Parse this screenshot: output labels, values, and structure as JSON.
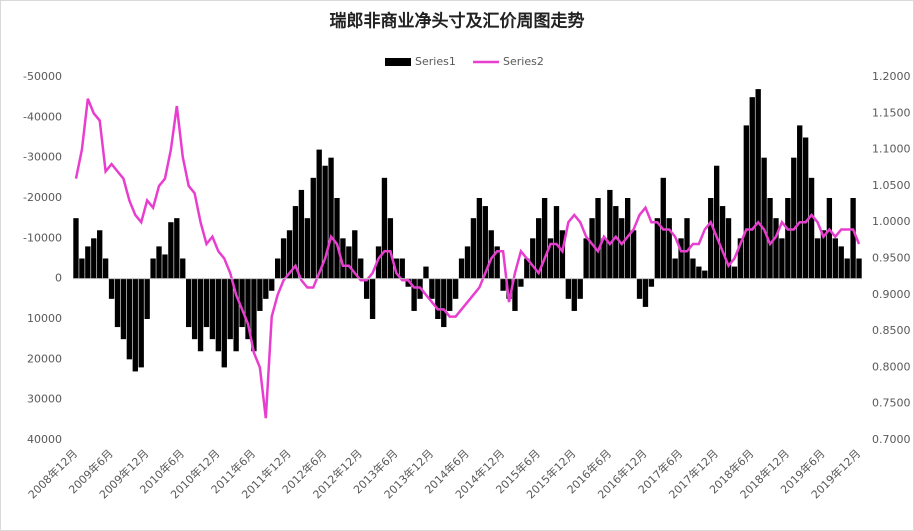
{
  "chart_data": {
    "type": "bar-line",
    "title": "瑞郎非商业净头寸及汇价周图走势",
    "categories": [
      "2008年12月",
      null,
      null,
      null,
      null,
      null,
      "2009年6月",
      null,
      null,
      null,
      null,
      null,
      "2009年12月",
      null,
      null,
      null,
      null,
      null,
      "2010年6月",
      null,
      null,
      null,
      null,
      null,
      "2010年12月",
      null,
      null,
      null,
      null,
      null,
      "2011年6月",
      null,
      null,
      null,
      null,
      null,
      "2011年12月",
      null,
      null,
      null,
      null,
      null,
      "2012年6月",
      null,
      null,
      null,
      null,
      null,
      "2012年12月",
      null,
      null,
      null,
      null,
      null,
      "2013年6月",
      null,
      null,
      null,
      null,
      null,
      "2013年12月",
      null,
      null,
      null,
      null,
      null,
      "2014年6月",
      null,
      null,
      null,
      null,
      null,
      "2014年12月",
      null,
      null,
      null,
      null,
      null,
      "2015年6月",
      null,
      null,
      null,
      null,
      null,
      "2015年12月",
      null,
      null,
      null,
      null,
      null,
      "2016年6月",
      null,
      null,
      null,
      null,
      null,
      "2016年12月",
      null,
      null,
      null,
      null,
      null,
      "2017年6月",
      null,
      null,
      null,
      null,
      null,
      "2017年12月",
      null,
      null,
      null,
      null,
      null,
      "2018年6月",
      null,
      null,
      null,
      null,
      null,
      "2018年12月",
      null,
      null,
      null,
      null,
      null,
      "2019年6月",
      null,
      null,
      null,
      null,
      null,
      "2019年12月"
    ],
    "series": [
      {
        "name": "Series1",
        "type": "bar",
        "color": "#000000",
        "values": [
          -15000,
          -5000,
          -8000,
          -10000,
          -12000,
          -5000,
          5000,
          12000,
          15000,
          20000,
          23000,
          22000,
          10000,
          -5000,
          -8000,
          -6000,
          -14000,
          -15000,
          -5000,
          12000,
          15000,
          18000,
          12000,
          15000,
          18000,
          22000,
          15000,
          18000,
          12000,
          15000,
          18000,
          8000,
          5000,
          3000,
          -5000,
          -10000,
          -12000,
          -18000,
          -22000,
          -15000,
          -25000,
          -32000,
          -28000,
          -30000,
          -20000,
          -10000,
          -8000,
          -12000,
          -5000,
          5000,
          10000,
          -8000,
          -25000,
          -15000,
          -5000,
          -5000,
          2000,
          8000,
          5000,
          -3000,
          5000,
          10000,
          12000,
          8000,
          5000,
          -5000,
          -8000,
          -15000,
          -20000,
          -18000,
          -12000,
          -8000,
          3000,
          5000,
          8000,
          2000,
          -5000,
          -10000,
          -15000,
          -20000,
          -10000,
          -18000,
          -12000,
          5000,
          8000,
          5000,
          -10000,
          -15000,
          -20000,
          -10000,
          -22000,
          -18000,
          -15000,
          -20000,
          -12000,
          5000,
          7000,
          2000,
          -15000,
          -25000,
          -15000,
          -5000,
          -10000,
          -15000,
          -5000,
          -3000,
          -2000,
          -20000,
          -28000,
          -18000,
          -15000,
          -3000,
          -10000,
          -38000,
          -45000,
          -47000,
          -30000,
          -20000,
          -15000,
          -10000,
          -20000,
          -30000,
          -38000,
          -35000,
          -25000,
          -10000,
          -12000,
          -20000,
          -10000,
          -8000,
          -5000,
          -20000,
          -5000
        ]
      },
      {
        "name": "Series2",
        "type": "line",
        "axis": "y2",
        "color": "#e83ed0",
        "values": [
          1.06,
          1.1,
          1.17,
          1.15,
          1.14,
          1.07,
          1.08,
          1.07,
          1.06,
          1.03,
          1.01,
          1.0,
          1.03,
          1.02,
          1.05,
          1.06,
          1.1,
          1.16,
          1.09,
          1.05,
          1.04,
          1.0,
          0.97,
          0.98,
          0.96,
          0.95,
          0.93,
          0.9,
          0.88,
          0.86,
          0.82,
          0.8,
          0.73,
          0.87,
          0.9,
          0.92,
          0.93,
          0.94,
          0.92,
          0.91,
          0.91,
          0.93,
          0.95,
          0.98,
          0.97,
          0.94,
          0.94,
          0.93,
          0.92,
          0.92,
          0.93,
          0.95,
          0.96,
          0.96,
          0.93,
          0.92,
          0.92,
          0.91,
          0.91,
          0.9,
          0.89,
          0.88,
          0.88,
          0.87,
          0.87,
          0.88,
          0.89,
          0.9,
          0.91,
          0.93,
          0.95,
          0.96,
          0.96,
          0.89,
          0.93,
          0.96,
          0.95,
          0.94,
          0.93,
          0.95,
          0.97,
          0.97,
          0.96,
          1.0,
          1.01,
          1.0,
          0.98,
          0.97,
          0.96,
          0.98,
          0.97,
          0.98,
          0.97,
          0.98,
          0.99,
          1.01,
          1.02,
          1.0,
          1.0,
          0.99,
          0.99,
          0.98,
          0.96,
          0.96,
          0.97,
          0.97,
          0.99,
          1.0,
          0.98,
          0.96,
          0.94,
          0.95,
          0.97,
          0.99,
          0.99,
          1.0,
          0.99,
          0.97,
          0.98,
          1.0,
          0.99,
          0.99,
          1.0,
          1.0,
          1.01,
          1.0,
          0.98,
          0.99,
          0.98,
          0.99,
          0.99,
          0.99,
          0.97
        ]
      }
    ],
    "ylim": [
      40000,
      -50000
    ],
    "yticks": [
      40000,
      30000,
      20000,
      10000,
      0,
      -10000,
      -20000,
      -30000,
      -40000,
      -50000
    ],
    "y2lim": [
      0.7,
      1.2
    ],
    "y2ticks": [
      {
        "value": 0.7,
        "label": "0.7000"
      },
      {
        "value": 0.75,
        "label": "0.7500"
      },
      {
        "value": 0.8,
        "label": "0.8000"
      },
      {
        "value": 0.85,
        "label": "0.8500"
      },
      {
        "value": 0.9,
        "label": "0.9000"
      },
      {
        "value": 0.95,
        "label": "0.9500"
      },
      {
        "value": 1.0,
        "label": "1.0000"
      },
      {
        "value": 1.05,
        "label": "1.0500"
      },
      {
        "value": 1.1,
        "label": "1.1000"
      },
      {
        "value": 1.15,
        "label": "1.1500"
      },
      {
        "value": 1.2,
        "label": "1.2000"
      }
    ],
    "grid": false
  }
}
